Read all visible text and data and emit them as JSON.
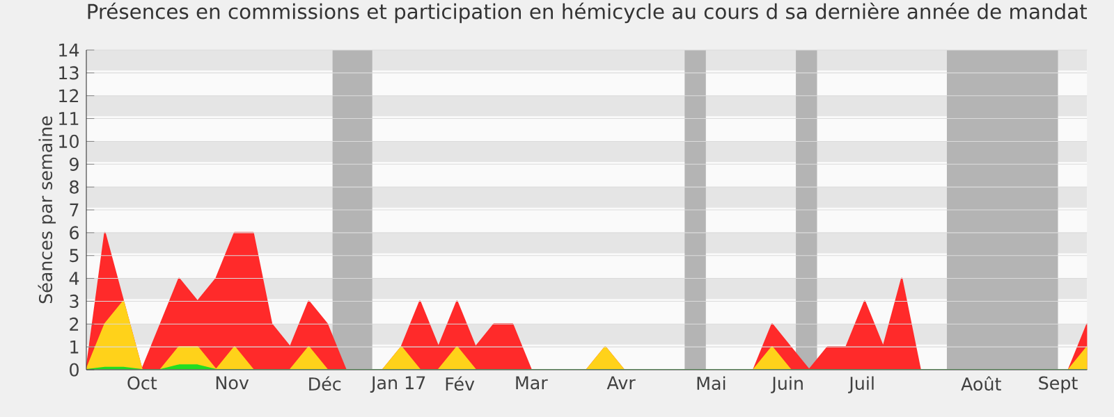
{
  "chart_data": {
    "type": "area",
    "title": "Présences en commissions et participation en hémicycle au cours d sa dernière année de mandat",
    "ylabel": "Séances par semaine",
    "x": [
      "2016-09-19",
      "2016-09-26",
      "2016-10-03",
      "2016-10-10",
      "2016-10-17",
      "2016-10-24",
      "2016-10-31",
      "2016-11-07",
      "2016-11-14",
      "2016-11-21",
      "2016-11-28",
      "2016-12-05",
      "2016-12-12",
      "2016-12-19",
      "2016-12-26",
      "2017-01-02",
      "2017-01-09",
      "2017-01-16",
      "2017-01-23",
      "2017-01-30",
      "2017-02-06",
      "2017-02-13",
      "2017-02-20",
      "2017-02-27",
      "2017-03-06",
      "2017-03-13",
      "2017-03-20",
      "2017-03-27",
      "2017-04-03",
      "2017-04-10",
      "2017-04-17",
      "2017-04-24",
      "2017-05-01",
      "2017-05-08",
      "2017-05-15",
      "2017-05-22",
      "2017-05-29",
      "2017-06-05",
      "2017-06-12",
      "2017-06-19",
      "2017-06-26",
      "2017-07-03",
      "2017-07-10",
      "2017-07-17",
      "2017-07-24",
      "2017-07-31",
      "2017-08-07",
      "2017-08-14",
      "2017-08-21",
      "2017-08-28",
      "2017-09-04",
      "2017-09-11",
      "2017-09-18",
      "2017-09-25",
      "2017-10-02"
    ],
    "series": [
      {
        "color": "#ff2a2a",
        "values": [
          0,
          6,
          3,
          0,
          2,
          4,
          3,
          4,
          6,
          6,
          2,
          1,
          3,
          2,
          0,
          0,
          0,
          1,
          3,
          1,
          3,
          1,
          2,
          2,
          0,
          0,
          0,
          0,
          1,
          0,
          0,
          0,
          0,
          0,
          0,
          0,
          0,
          2,
          1,
          0,
          1,
          1,
          3,
          1,
          4,
          0,
          0,
          0,
          0,
          0,
          0,
          0,
          0,
          0,
          2
        ]
      },
      {
        "color": "#ffd21a",
        "values": [
          0,
          2,
          3,
          0,
          0,
          1,
          1,
          0,
          1,
          0,
          0,
          0,
          1,
          0,
          0,
          0,
          0,
          1,
          0,
          0,
          1,
          0,
          0,
          0,
          0,
          0,
          0,
          0,
          1,
          0,
          0,
          0,
          0,
          0,
          0,
          0,
          0,
          1,
          0,
          0,
          0,
          0,
          0,
          0,
          0,
          0,
          0,
          0,
          0,
          0,
          0,
          0,
          0,
          0,
          1
        ]
      },
      {
        "color": "#22dd22",
        "values": [
          0,
          0.1,
          0.1,
          0,
          0,
          0.2,
          0.2,
          0,
          0,
          0,
          0,
          0,
          0,
          0,
          0,
          0,
          0,
          0,
          0,
          0,
          0,
          0,
          0,
          0,
          0,
          0,
          0,
          0,
          0,
          0,
          0,
          0,
          0,
          0,
          0,
          0,
          0,
          0,
          0,
          0,
          0,
          0,
          0,
          0,
          0,
          0,
          0,
          0,
          0,
          0,
          0,
          0,
          0,
          0,
          0
        ]
      }
    ],
    "xlim": [
      "2016-09-19",
      "2017-10-02"
    ],
    "xticks": [
      {
        "value": "2016-10-10",
        "label": "Oct"
      },
      {
        "value": "2016-11-13",
        "label": "Nov"
      },
      {
        "value": "2016-12-18",
        "label": "Déc"
      },
      {
        "value": "2017-01-15",
        "label": "Jan 17"
      },
      {
        "value": "2017-02-07",
        "label": "Fév"
      },
      {
        "value": "2017-03-06",
        "label": "Mar"
      },
      {
        "value": "2017-04-09",
        "label": "Avr"
      },
      {
        "value": "2017-05-13",
        "label": "Mai"
      },
      {
        "value": "2017-06-11",
        "label": "Juin"
      },
      {
        "value": "2017-07-09",
        "label": "Juil"
      },
      {
        "value": "2017-08-23",
        "label": "Août"
      },
      {
        "value": "2017-09-21",
        "label": "Sept"
      }
    ],
    "ylim": [
      0,
      14
    ],
    "yticks": [
      0,
      1,
      2,
      3,
      4,
      5,
      6,
      7,
      8,
      9,
      10,
      11,
      12,
      13,
      14
    ],
    "grid": "y",
    "bands": [
      {
        "axis": "x",
        "from": "2016-12-21",
        "to": "2017-01-05",
        "color": "#b4b4b4"
      },
      {
        "axis": "x",
        "from": "2017-05-03",
        "to": "2017-05-11",
        "color": "#b4b4b4"
      },
      {
        "axis": "x",
        "from": "2017-06-14",
        "to": "2017-06-22",
        "color": "#b4b4b4"
      },
      {
        "axis": "x",
        "from": "2017-08-10",
        "to": "2017-09-21",
        "color": "#b4b4b4"
      }
    ]
  }
}
